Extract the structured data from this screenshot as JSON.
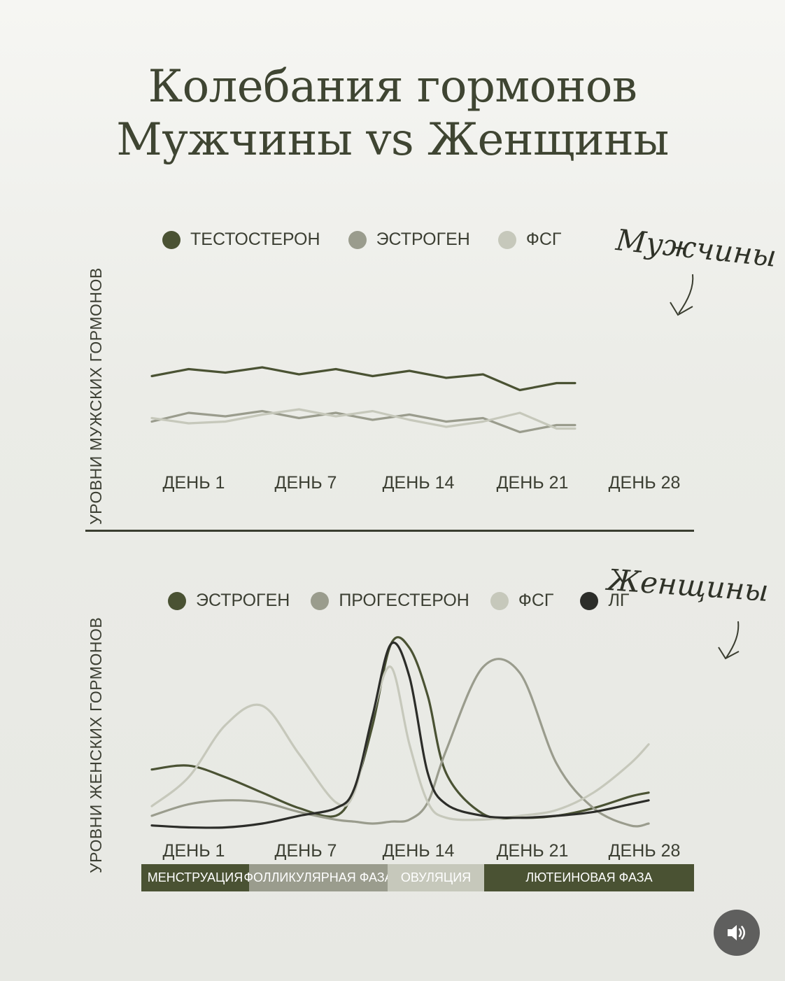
{
  "title_line1": "Колебания гормонов",
  "title_line2": "Мужчины vs Женщины",
  "colors": {
    "dark_green": "#4a5233",
    "mid_grey": "#9a9c8d",
    "light_grey": "#c6c8bb",
    "black": "#2c2d29",
    "phase_menstruation": "#4a5233",
    "phase_follicular": "#9a9c8d",
    "phase_ovulation": "#c6c8bb",
    "phase_luteal": "#4a5233"
  },
  "chart_data": [
    {
      "type": "line",
      "handwritten_label": "Мужчины",
      "ylabel": "УРОВНИ МУЖСКИХ ГОРМОНОВ",
      "xlabel": "",
      "tick_labels": [
        "ДЕНЬ 1",
        "ДЕНЬ 7",
        "ДЕНЬ 14",
        "ДЕНЬ 21",
        "ДЕНЬ 28"
      ],
      "tick_days": [
        1,
        7,
        14,
        21,
        28
      ],
      "legend_placement": "top",
      "x": [
        1,
        3,
        5,
        7,
        9,
        11,
        13,
        15,
        17,
        19,
        21,
        23,
        24
      ],
      "ylim": [
        0,
        100
      ],
      "series": [
        {
          "name": "ТЕСТОСТЕРОН",
          "color": "#4a5233",
          "values": [
            67,
            71,
            69,
            72,
            68,
            71,
            67,
            70,
            66,
            68,
            59,
            63,
            63
          ]
        },
        {
          "name": "ЭСТРОГЕН",
          "color": "#9a9c8d",
          "values": [
            41,
            46,
            44,
            47,
            43,
            46,
            42,
            45,
            41,
            43,
            35,
            39,
            39
          ]
        },
        {
          "name": "ФСГ",
          "color": "#c6c8bb",
          "values": [
            43,
            40,
            41,
            45,
            48,
            44,
            47,
            42,
            38,
            41,
            46,
            37,
            37
          ]
        }
      ]
    },
    {
      "type": "line",
      "handwritten_label": "Женщины",
      "ylabel": "УРОВНИ ЖЕНСКИХ ГОРМОНОВ",
      "xlabel": "",
      "tick_labels": [
        "ДЕНЬ 1",
        "ДЕНЬ 7",
        "ДЕНЬ 14",
        "ДЕНЬ 21",
        "ДЕНЬ 28"
      ],
      "tick_days": [
        1,
        7,
        14,
        21,
        28
      ],
      "legend_placement": "top",
      "x": [
        1,
        3,
        5,
        7,
        9,
        11,
        12,
        13,
        14,
        15,
        16,
        17,
        19,
        21,
        23,
        25,
        27,
        28
      ],
      "ylim": [
        0,
        100
      ],
      "series": [
        {
          "name": "ЭСТРОГЕН",
          "color": "#4a5233",
          "values": [
            32,
            34,
            28,
            20,
            12,
            8,
            22,
            55,
            97,
            95,
            70,
            30,
            9,
            7,
            8,
            12,
            18,
            20
          ]
        },
        {
          "name": "ПРОГЕСТЕРОН",
          "color": "#9a9c8d",
          "values": [
            8,
            14,
            16,
            15,
            10,
            6,
            5,
            4,
            5,
            6,
            15,
            42,
            85,
            82,
            35,
            12,
            3,
            4
          ]
        },
        {
          "name": "ФСГ",
          "color": "#c6c8bb",
          "values": [
            13,
            28,
            55,
            65,
            40,
            15,
            20,
            60,
            85,
            45,
            15,
            7,
            6,
            8,
            11,
            20,
            35,
            45
          ]
        },
        {
          "name": "ЛГ",
          "color": "#2c2d29",
          "values": [
            3,
            2,
            2,
            4,
            8,
            12,
            22,
            60,
            97,
            80,
            30,
            14,
            8,
            7,
            8,
            10,
            14,
            16
          ]
        }
      ]
    }
  ],
  "phases": [
    {
      "label": "МЕНСТРУАЦИЯ",
      "start_day": 1,
      "end_day": 5
    },
    {
      "label": "ФОЛЛИКУЛЯРНАЯ ФАЗА",
      "start_day": 5,
      "end_day": 12
    },
    {
      "label": "ОВУЛЯЦИЯ",
      "start_day": 12,
      "end_day": 17
    },
    {
      "label": "ЛЮТЕИНОВАЯ ФАЗА",
      "start_day": 17,
      "end_day": 28
    }
  ],
  "sound_icon": "speaker-icon"
}
